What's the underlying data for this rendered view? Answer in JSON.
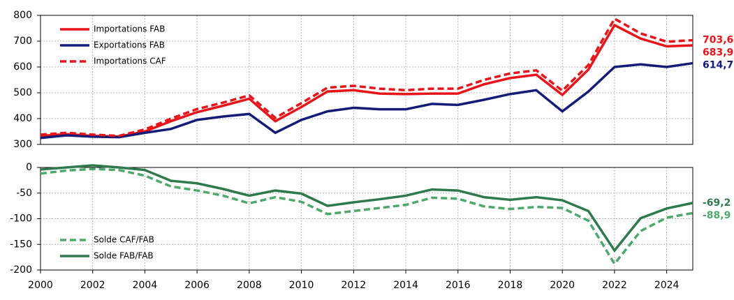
{
  "chart_data": [
    {
      "type": "line",
      "legend": "upper left",
      "grid": true,
      "x": [
        2000,
        2001,
        2002,
        2003,
        2004,
        2005,
        2006,
        2007,
        2008,
        2009,
        2010,
        2011,
        2012,
        2013,
        2014,
        2015,
        2016,
        2017,
        2018,
        2019,
        2020,
        2021,
        2022,
        2023,
        2024,
        2025
      ],
      "xlim": [
        2000,
        2025
      ],
      "ylim": [
        300,
        800
      ],
      "yticks": [
        300,
        400,
        500,
        600,
        700,
        800
      ],
      "series": [
        {
          "name": "Importations FAB",
          "color": "#e8141a",
          "dash": false,
          "values": [
            333,
            340,
            333,
            330,
            350,
            390,
            425,
            450,
            477,
            390,
            445,
            505,
            510,
            497,
            495,
            497,
            497,
            533,
            557,
            570,
            492,
            590,
            762,
            710,
            680,
            683.9
          ],
          "value_labels": [
            null,
            null,
            null,
            null,
            null,
            null,
            null,
            null,
            null,
            null,
            null,
            null,
            null,
            null,
            null,
            null,
            null,
            null,
            null,
            null,
            null,
            null,
            null,
            null,
            null,
            "683,9"
          ]
        },
        {
          "name": "Exportations FAB",
          "color": "#141c78",
          "dash": false,
          "values": [
            325,
            335,
            330,
            328,
            345,
            360,
            395,
            408,
            418,
            345,
            395,
            428,
            442,
            436,
            436,
            457,
            453,
            473,
            495,
            510,
            428,
            505,
            600,
            610,
            600,
            614.7
          ],
          "value_labels": [
            null,
            null,
            null,
            null,
            null,
            null,
            null,
            null,
            null,
            null,
            null,
            null,
            null,
            null,
            null,
            null,
            null,
            null,
            null,
            null,
            null,
            null,
            null,
            null,
            null,
            "614,7"
          ]
        },
        {
          "name": "Importations CAF",
          "color": "#e8141a",
          "dash": true,
          "values": [
            338,
            345,
            338,
            333,
            358,
            400,
            437,
            462,
            490,
            403,
            460,
            520,
            527,
            516,
            510,
            516,
            516,
            550,
            575,
            587,
            508,
            608,
            787,
            730,
            698,
            703.6
          ],
          "value_labels": [
            null,
            null,
            null,
            null,
            null,
            null,
            null,
            null,
            null,
            null,
            null,
            null,
            null,
            null,
            null,
            null,
            null,
            null,
            null,
            null,
            null,
            null,
            null,
            null,
            null,
            "703,6"
          ]
        }
      ]
    },
    {
      "type": "line",
      "legend": "lower left",
      "grid": true,
      "x": [
        2000,
        2001,
        2002,
        2003,
        2004,
        2005,
        2006,
        2007,
        2008,
        2009,
        2010,
        2011,
        2012,
        2013,
        2014,
        2015,
        2016,
        2017,
        2018,
        2019,
        2020,
        2021,
        2022,
        2023,
        2024,
        2025
      ],
      "xlim": [
        2000,
        2025
      ],
      "xticks": [
        2000,
        2002,
        2004,
        2006,
        2008,
        2010,
        2012,
        2014,
        2016,
        2018,
        2020,
        2022,
        2024
      ],
      "ylim": [
        -200,
        0
      ],
      "yticks": [
        -200,
        -150,
        -100,
        -50,
        0
      ],
      "series": [
        {
          "name": "Solde CAF/FAB",
          "color": "#4ea86c",
          "dash": true,
          "values": [
            -12,
            -6,
            -3,
            -5,
            -16,
            -37,
            -45,
            -55,
            -70,
            -58,
            -67,
            -91,
            -85,
            -79,
            -73,
            -59,
            -61,
            -76,
            -81,
            -77,
            -79,
            -104,
            -188,
            -124,
            -98,
            -88.9
          ],
          "value_labels": [
            null,
            null,
            null,
            null,
            null,
            null,
            null,
            null,
            null,
            null,
            null,
            null,
            null,
            null,
            null,
            null,
            null,
            null,
            null,
            null,
            null,
            null,
            null,
            null,
            null,
            "-88,9"
          ]
        },
        {
          "name": "Solde FAB/FAB",
          "color": "#2f7a4c",
          "dash": false,
          "values": [
            -4,
            0,
            4,
            0,
            -5,
            -26,
            -31,
            -42,
            -55,
            -45,
            -51,
            -75,
            -68,
            -62,
            -55,
            -43,
            -45,
            -58,
            -63,
            -58,
            -64,
            -85,
            -162,
            -99,
            -80,
            -69.2
          ],
          "value_labels": [
            null,
            null,
            null,
            null,
            null,
            null,
            null,
            null,
            null,
            null,
            null,
            null,
            null,
            null,
            null,
            null,
            null,
            null,
            null,
            null,
            null,
            null,
            null,
            null,
            null,
            "-69,2"
          ]
        }
      ]
    }
  ]
}
